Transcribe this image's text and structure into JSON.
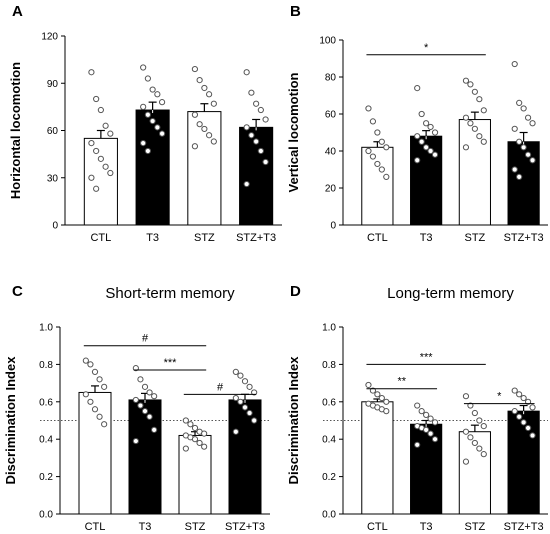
{
  "chart_data": [
    {
      "panel_label": "A",
      "type": "bar",
      "title": "",
      "ylabel": "Horizontal locomotion",
      "ylim": [
        0,
        120
      ],
      "yticks": [
        0,
        30,
        60,
        90,
        120
      ],
      "categories": [
        "CTL",
        "T3",
        "STZ",
        "STZ+T3"
      ],
      "values": [
        55,
        73,
        72,
        62
      ],
      "errors": [
        5,
        5,
        5,
        5
      ],
      "fills": [
        "#ffffff",
        "#000000",
        "#ffffff",
        "#000000"
      ],
      "points": [
        [
          97,
          80,
          73,
          63,
          58,
          52,
          47,
          42,
          37,
          33,
          30,
          23
        ],
        [
          100,
          93,
          86,
          83,
          78,
          75,
          70,
          66,
          62,
          58,
          52,
          47
        ],
        [
          99,
          92,
          87,
          83,
          77,
          70,
          64,
          61,
          57,
          53,
          50
        ],
        [
          97,
          84,
          77,
          73,
          67,
          62,
          57,
          53,
          47,
          40,
          26
        ]
      ],
      "reference_line": null,
      "significance": [
        {
          "from": 0,
          "to": 2,
          "label": "",
          "y": null
        }
      ]
    },
    {
      "panel_label": "B",
      "type": "bar",
      "title": "",
      "ylabel": "Vertical locomotion",
      "ylim": [
        0,
        100
      ],
      "yticks": [
        0,
        20,
        40,
        60,
        80,
        100
      ],
      "categories": [
        "CTL",
        "T3",
        "STZ",
        "STZ+T3"
      ],
      "values": [
        42,
        48,
        57,
        45
      ],
      "errors": [
        3,
        3,
        4,
        5
      ],
      "fills": [
        "#ffffff",
        "#000000",
        "#ffffff",
        "#000000"
      ],
      "points": [
        [
          63,
          56,
          50,
          45,
          42,
          40,
          37,
          33,
          30,
          26
        ],
        [
          74,
          60,
          55,
          53,
          50,
          48,
          45,
          42,
          40,
          38,
          35
        ],
        [
          78,
          76,
          72,
          68,
          62,
          58,
          55,
          52,
          48,
          45,
          42
        ],
        [
          87,
          66,
          63,
          58,
          55,
          52,
          45,
          42,
          38,
          35,
          30,
          26
        ]
      ],
      "reference_line": null,
      "significance": [
        {
          "from": 0,
          "to": 2,
          "label": "*",
          "y": 92
        }
      ]
    },
    {
      "panel_label": "C",
      "type": "bar",
      "title": "Short-term memory",
      "ylabel": "Discrimination Index",
      "ylim": [
        0,
        1.0
      ],
      "yticks": [
        "0.0",
        "0.2",
        "0.4",
        "0.6",
        "0.8",
        "1.0"
      ],
      "categories": [
        "CTL",
        "T3",
        "STZ",
        "STZ+T3"
      ],
      "values": [
        0.65,
        0.61,
        0.42,
        0.61
      ],
      "errors": [
        0.035,
        0.035,
        0.02,
        0.03
      ],
      "fills": [
        "#ffffff",
        "#000000",
        "#ffffff",
        "#000000"
      ],
      "points": [
        [
          0.82,
          0.8,
          0.76,
          0.72,
          0.68,
          0.64,
          0.6,
          0.56,
          0.52,
          0.48
        ],
        [
          0.78,
          0.72,
          0.68,
          0.65,
          0.63,
          0.61,
          0.58,
          0.55,
          0.52,
          0.45,
          0.39
        ],
        [
          0.5,
          0.48,
          0.46,
          0.44,
          0.43,
          0.42,
          0.41,
          0.4,
          0.38,
          0.36,
          0.35
        ],
        [
          0.76,
          0.74,
          0.71,
          0.68,
          0.65,
          0.62,
          0.6,
          0.57,
          0.54,
          0.5,
          0.44
        ]
      ],
      "reference_line": 0.5,
      "significance": [
        {
          "from": 0,
          "to": 2,
          "label": "#",
          "y": 0.9
        },
        {
          "from": 1,
          "to": 2,
          "label": "***",
          "y": 0.77
        },
        {
          "from": 2,
          "to": 3,
          "label": "#",
          "y": 0.64
        }
      ]
    },
    {
      "panel_label": "D",
      "type": "bar",
      "title": "Long-term memory",
      "ylabel": "Discrimination Index",
      "ylim": [
        0,
        1.0
      ],
      "yticks": [
        "0.0",
        "0.2",
        "0.4",
        "0.6",
        "0.8",
        "1.0"
      ],
      "categories": [
        "CTL",
        "T3",
        "STZ",
        "STZ+T3"
      ],
      "values": [
        0.6,
        0.48,
        0.44,
        0.55
      ],
      "errors": [
        0.015,
        0.02,
        0.035,
        0.03
      ],
      "fills": [
        "#ffffff",
        "#000000",
        "#ffffff",
        "#000000"
      ],
      "points": [
        [
          0.69,
          0.66,
          0.64,
          0.62,
          0.6,
          0.59,
          0.58,
          0.57,
          0.56,
          0.55
        ],
        [
          0.58,
          0.55,
          0.53,
          0.51,
          0.49,
          0.47,
          0.46,
          0.45,
          0.43,
          0.4,
          0.37
        ],
        [
          0.63,
          0.58,
          0.54,
          0.5,
          0.47,
          0.44,
          0.41,
          0.38,
          0.35,
          0.32,
          0.28
        ],
        [
          0.66,
          0.64,
          0.62,
          0.6,
          0.57,
          0.55,
          0.52,
          0.49,
          0.46,
          0.42
        ]
      ],
      "reference_line": 0.5,
      "significance": [
        {
          "from": 0,
          "to": 2,
          "label": "***",
          "y": 0.8
        },
        {
          "from": 0,
          "to": 1,
          "label": "**",
          "y": 0.67
        },
        {
          "from": 2,
          "to": 3,
          "label": "*",
          "y": 0.59
        }
      ]
    }
  ]
}
